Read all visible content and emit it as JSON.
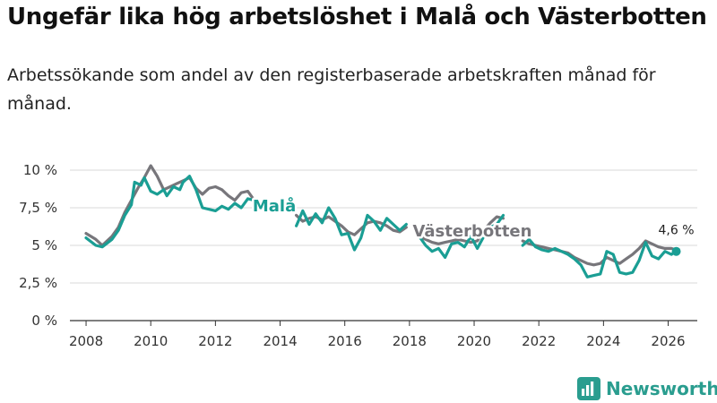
{
  "title": "Ungefär lika hög arbetslöshet i Malå och Västerbotten",
  "subtitle": "Arbetssökande som andel av den registerbaserade arbetskraften månad för månad.",
  "brand": {
    "name": "Newsworthy"
  },
  "colors": {
    "mala": "#1a9e94",
    "vasterbotten": "#77767b",
    "grid": "#d9d9d9",
    "axis": "#333333"
  },
  "chart_data": {
    "type": "line",
    "title": "Ungefär lika hög arbetslöshet i Malå och Västerbotten",
    "xlabel": "",
    "ylabel": "",
    "xlim": [
      2007.5,
      2026.9
    ],
    "ylim": [
      0,
      10
    ],
    "x_ticks": [
      2008,
      2010,
      2012,
      2014,
      2016,
      2018,
      2020,
      2022,
      2024,
      2026
    ],
    "x_tick_labels": [
      "2008",
      "2010",
      "2012",
      "2014",
      "2016",
      "2018",
      "2020",
      "2022",
      "2024",
      "2026"
    ],
    "y_ticks": [
      0,
      2.5,
      5,
      7.5,
      10
    ],
    "y_tick_labels": [
      "0 %",
      "2,5 %",
      "5 %",
      "7,5 %",
      "10 %"
    ],
    "grid": true,
    "end_label": "4,6 %",
    "series": [
      {
        "name": "Malå",
        "label": "Malå",
        "color": "#1a9e94",
        "points": [
          [
            2008.0,
            5.5
          ],
          [
            2008.3,
            5.0
          ],
          [
            2008.5,
            4.9
          ],
          [
            2008.8,
            5.4
          ],
          [
            2009.0,
            6.0
          ],
          [
            2009.2,
            7.0
          ],
          [
            2009.4,
            7.7
          ],
          [
            2009.5,
            9.2
          ],
          [
            2009.7,
            9.0
          ],
          [
            2009.8,
            9.5
          ],
          [
            2010.0,
            8.6
          ],
          [
            2010.2,
            8.4
          ],
          [
            2010.4,
            8.7
          ],
          [
            2010.5,
            8.3
          ],
          [
            2010.7,
            8.9
          ],
          [
            2010.9,
            8.7
          ],
          [
            2011.0,
            9.2
          ],
          [
            2011.2,
            9.6
          ],
          [
            2011.4,
            8.7
          ],
          [
            2011.6,
            7.5
          ],
          [
            2011.8,
            7.4
          ],
          [
            2012.0,
            7.3
          ],
          [
            2012.2,
            7.6
          ],
          [
            2012.4,
            7.4
          ],
          [
            2012.6,
            7.8
          ],
          [
            2012.8,
            7.5
          ],
          [
            2013.0,
            8.1
          ],
          [
            2013.2,
            8.0
          ],
          null,
          [
            2014.5,
            6.3
          ],
          [
            2014.7,
            7.3
          ],
          [
            2014.9,
            6.4
          ],
          [
            2015.1,
            7.1
          ],
          [
            2015.3,
            6.5
          ],
          [
            2015.5,
            7.5
          ],
          [
            2015.7,
            6.8
          ],
          [
            2015.9,
            5.7
          ],
          [
            2016.1,
            5.8
          ],
          [
            2016.3,
            4.7
          ],
          [
            2016.5,
            5.5
          ],
          [
            2016.7,
            7.0
          ],
          [
            2016.9,
            6.6
          ],
          [
            2017.1,
            6.0
          ],
          [
            2017.3,
            6.8
          ],
          [
            2017.5,
            6.4
          ],
          [
            2017.7,
            6.0
          ],
          [
            2017.9,
            6.4
          ],
          null,
          [
            2018.3,
            5.6
          ],
          [
            2018.5,
            5.0
          ],
          [
            2018.7,
            4.6
          ],
          [
            2018.9,
            4.8
          ],
          [
            2019.1,
            4.2
          ],
          [
            2019.3,
            5.1
          ],
          [
            2019.5,
            5.2
          ],
          [
            2019.7,
            4.9
          ],
          [
            2019.9,
            5.6
          ],
          [
            2020.1,
            4.8
          ],
          [
            2020.3,
            5.6
          ],
          [
            2020.5,
            6.2
          ],
          [
            2020.7,
            6.4
          ],
          [
            2020.9,
            7.0
          ],
          null,
          [
            2021.5,
            5.0
          ],
          [
            2021.7,
            5.4
          ],
          [
            2021.9,
            4.9
          ],
          [
            2022.1,
            4.7
          ],
          [
            2022.3,
            4.6
          ],
          [
            2022.5,
            4.8
          ],
          [
            2022.7,
            4.6
          ],
          [
            2022.9,
            4.4
          ],
          [
            2023.1,
            4.1
          ],
          [
            2023.3,
            3.7
          ],
          [
            2023.5,
            2.9
          ],
          [
            2023.7,
            3.0
          ],
          [
            2023.9,
            3.1
          ],
          [
            2024.1,
            4.6
          ],
          [
            2024.3,
            4.4
          ],
          [
            2024.5,
            3.2
          ],
          [
            2024.7,
            3.1
          ],
          [
            2024.9,
            3.2
          ],
          [
            2025.1,
            4.0
          ],
          [
            2025.3,
            5.2
          ],
          [
            2025.5,
            4.3
          ],
          [
            2025.7,
            4.1
          ],
          [
            2025.9,
            4.6
          ],
          [
            2026.1,
            4.4
          ],
          [
            2026.25,
            4.6
          ]
        ]
      },
      {
        "name": "Västerbotten",
        "label": "Västerbotten",
        "color": "#77767b",
        "points": [
          [
            2008.0,
            5.8
          ],
          [
            2008.3,
            5.4
          ],
          [
            2008.5,
            5.0
          ],
          [
            2008.8,
            5.6
          ],
          [
            2009.0,
            6.2
          ],
          [
            2009.2,
            7.2
          ],
          [
            2009.4,
            8.0
          ],
          [
            2009.6,
            8.8
          ],
          [
            2009.8,
            9.5
          ],
          [
            2010.0,
            10.3
          ],
          [
            2010.2,
            9.6
          ],
          [
            2010.4,
            8.7
          ],
          [
            2010.6,
            8.9
          ],
          [
            2010.8,
            9.1
          ],
          [
            2011.0,
            9.3
          ],
          [
            2011.2,
            9.5
          ],
          [
            2011.4,
            8.8
          ],
          [
            2011.6,
            8.4
          ],
          [
            2011.8,
            8.8
          ],
          [
            2012.0,
            8.9
          ],
          [
            2012.2,
            8.7
          ],
          [
            2012.4,
            8.3
          ],
          [
            2012.6,
            8.0
          ],
          [
            2012.8,
            8.5
          ],
          [
            2013.0,
            8.6
          ],
          [
            2013.2,
            8.0
          ],
          null,
          [
            2014.5,
            7.0
          ],
          [
            2014.7,
            6.6
          ],
          [
            2014.9,
            6.8
          ],
          [
            2015.1,
            6.9
          ],
          [
            2015.3,
            6.7
          ],
          [
            2015.5,
            6.9
          ],
          [
            2015.7,
            6.6
          ],
          [
            2015.9,
            6.3
          ],
          [
            2016.1,
            5.9
          ],
          [
            2016.3,
            5.7
          ],
          [
            2016.5,
            6.1
          ],
          [
            2016.7,
            6.5
          ],
          [
            2016.9,
            6.6
          ],
          [
            2017.1,
            6.5
          ],
          [
            2017.3,
            6.3
          ],
          [
            2017.5,
            6.0
          ],
          [
            2017.7,
            5.9
          ],
          [
            2017.9,
            6.2
          ],
          null,
          [
            2018.3,
            5.6
          ],
          [
            2018.5,
            5.4
          ],
          [
            2018.7,
            5.2
          ],
          [
            2018.9,
            5.1
          ],
          [
            2019.1,
            5.2
          ],
          [
            2019.3,
            5.3
          ],
          [
            2019.5,
            5.4
          ],
          [
            2019.7,
            5.3
          ],
          [
            2019.9,
            5.2
          ],
          [
            2020.1,
            5.3
          ],
          [
            2020.3,
            6.0
          ],
          [
            2020.5,
            6.5
          ],
          [
            2020.7,
            6.9
          ],
          [
            2020.9,
            6.8
          ],
          null,
          [
            2021.5,
            5.3
          ],
          [
            2021.7,
            5.1
          ],
          [
            2021.9,
            5.0
          ],
          [
            2022.1,
            4.9
          ],
          [
            2022.3,
            4.8
          ],
          [
            2022.5,
            4.7
          ],
          [
            2022.7,
            4.6
          ],
          [
            2022.9,
            4.5
          ],
          [
            2023.1,
            4.2
          ],
          [
            2023.3,
            4.0
          ],
          [
            2023.5,
            3.8
          ],
          [
            2023.7,
            3.7
          ],
          [
            2023.9,
            3.8
          ],
          [
            2024.1,
            4.2
          ],
          [
            2024.3,
            4.0
          ],
          [
            2024.5,
            3.8
          ],
          [
            2024.7,
            4.1
          ],
          [
            2024.9,
            4.4
          ],
          [
            2025.1,
            4.8
          ],
          [
            2025.3,
            5.3
          ],
          [
            2025.5,
            5.1
          ],
          [
            2025.7,
            4.9
          ],
          [
            2025.9,
            4.8
          ],
          [
            2026.1,
            4.8
          ],
          [
            2026.25,
            4.7
          ]
        ]
      }
    ]
  }
}
